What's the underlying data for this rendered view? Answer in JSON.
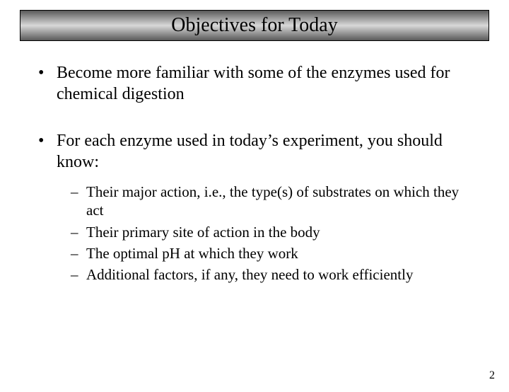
{
  "title": "Objectives for Today",
  "bullets": [
    {
      "text": "Become more familiar with some of the enzymes used for chemical digestion"
    },
    {
      "text": "For each enzyme used in today’s experiment, you should know:",
      "sub": [
        "Their major action, i.e., the type(s) of substrates on which they act",
        "Their primary site of action in the body",
        "The optimal pH at which they work",
        "Additional factors, if any, they need to work efficiently"
      ]
    }
  ],
  "page_number": "2",
  "style": {
    "background_color": "#ffffff",
    "text_color": "#000000",
    "title_fontsize": 28,
    "body_fontsize": 24,
    "sub_fontsize": 21,
    "title_bar_gradient": [
      "#5a5a5a",
      "#d8d8d8",
      "#5a5a5a"
    ],
    "title_bar_border": "#000000",
    "font_family": "Times New Roman"
  }
}
